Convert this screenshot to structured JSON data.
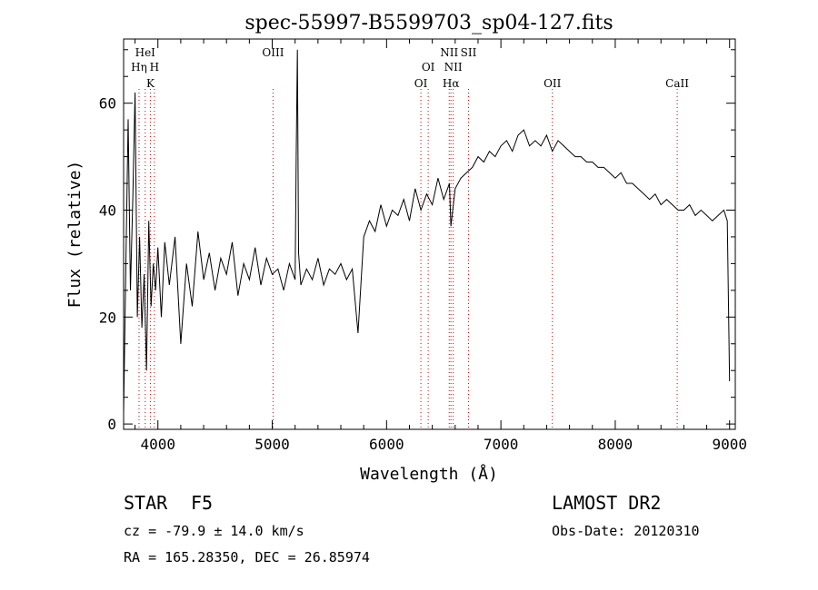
{
  "chart_data": {
    "type": "line",
    "title": "spec-55997-B5599703_sp04-127.fits",
    "xlabel": "Wavelength (Å)",
    "ylabel": "Flux (relative)",
    "xlim": [
      3700,
      9050
    ],
    "ylim": [
      -1,
      72
    ],
    "xticks": [
      4000,
      5000,
      6000,
      7000,
      8000,
      9000
    ],
    "yticks": [
      0,
      20,
      40,
      60
    ],
    "grid": false,
    "line_color": "#000000",
    "marker_color": "#cc0000",
    "series": [
      {
        "x": [
          3700,
          3720,
          3740,
          3760,
          3780,
          3800,
          3820,
          3840,
          3860,
          3880,
          3900,
          3920,
          3940,
          3960,
          3980,
          4000,
          4030,
          4060,
          4100,
          4150,
          4200,
          4250,
          4300,
          4350,
          4400,
          4450,
          4500,
          4550,
          4600,
          4650,
          4700,
          4750,
          4800,
          4850,
          4900,
          4950,
          5000,
          5050,
          5100,
          5150,
          5200,
          5210,
          5220,
          5230,
          5250,
          5300,
          5350,
          5400,
          5450,
          5500,
          5550,
          5600,
          5650,
          5700,
          5750,
          5800,
          5850,
          5900,
          5950,
          6000,
          6050,
          6100,
          6150,
          6200,
          6250,
          6300,
          6350,
          6400,
          6450,
          6500,
          6550,
          6563,
          6600,
          6650,
          6700,
          6750,
          6800,
          6850,
          6900,
          6950,
          7000,
          7050,
          7100,
          7150,
          7200,
          7250,
          7300,
          7350,
          7400,
          7450,
          7500,
          7550,
          7600,
          7650,
          7700,
          7750,
          7800,
          7850,
          7900,
          7950,
          8000,
          8050,
          8100,
          8150,
          8200,
          8250,
          8300,
          8350,
          8400,
          8450,
          8500,
          8550,
          8600,
          8650,
          8700,
          8750,
          8800,
          8850,
          8900,
          8950,
          8980,
          9000
        ],
        "values": [
          2,
          30,
          57,
          25,
          42,
          62,
          20,
          35,
          18,
          28,
          10,
          38,
          22,
          30,
          25,
          33,
          20,
          34,
          26,
          35,
          15,
          30,
          22,
          36,
          27,
          32,
          25,
          31,
          28,
          34,
          24,
          30,
          27,
          33,
          26,
          31,
          28,
          29,
          25,
          30,
          27,
          50,
          70,
          32,
          26,
          29,
          27,
          31,
          26,
          29,
          28,
          30,
          27,
          29,
          17,
          35,
          38,
          36,
          41,
          37,
          40,
          39,
          42,
          38,
          44,
          40,
          43,
          41,
          46,
          42,
          45,
          37,
          44,
          46,
          47,
          48,
          50,
          49,
          51,
          50,
          52,
          53,
          51,
          54,
          55,
          52,
          53,
          52,
          54,
          51,
          53,
          52,
          51,
          50,
          50,
          49,
          49,
          48,
          48,
          47,
          46,
          47,
          45,
          45,
          44,
          43,
          42,
          43,
          41,
          42,
          41,
          40,
          40,
          41,
          39,
          40,
          39,
          38,
          39,
          40,
          38,
          8
        ]
      }
    ],
    "line_markers": [
      {
        "x": 3835,
        "label": "Hη",
        "row": 2
      },
      {
        "x": 3889,
        "label": "HeI",
        "row": 1
      },
      {
        "x": 3934,
        "label": "K",
        "row": 3
      },
      {
        "x": 3969,
        "label": "H",
        "row": 2
      },
      {
        "x": 5007,
        "label": "OIII",
        "row": 1
      },
      {
        "x": 6300,
        "label": "OI",
        "row": 3
      },
      {
        "x": 6364,
        "label": "OI",
        "row": 2
      },
      {
        "x": 6548,
        "label": "NII",
        "row": 1
      },
      {
        "x": 6563,
        "label": "Hα",
        "row": 3
      },
      {
        "x": 6583,
        "label": "NII",
        "row": 2
      },
      {
        "x": 6717,
        "label": "SII",
        "row": 1
      },
      {
        "x": 7450,
        "label": "OII",
        "row": 3
      },
      {
        "x": 8542,
        "label": "CaII",
        "row": 3
      }
    ]
  },
  "info": {
    "object_class": "STAR",
    "subclass": "F5",
    "survey": "LAMOST DR2",
    "cz": "cz = -79.9 ± 14.0 km/s",
    "obs_date": "Obs-Date: 20120310",
    "coords": "RA = 165.28350, DEC =  26.85974"
  }
}
